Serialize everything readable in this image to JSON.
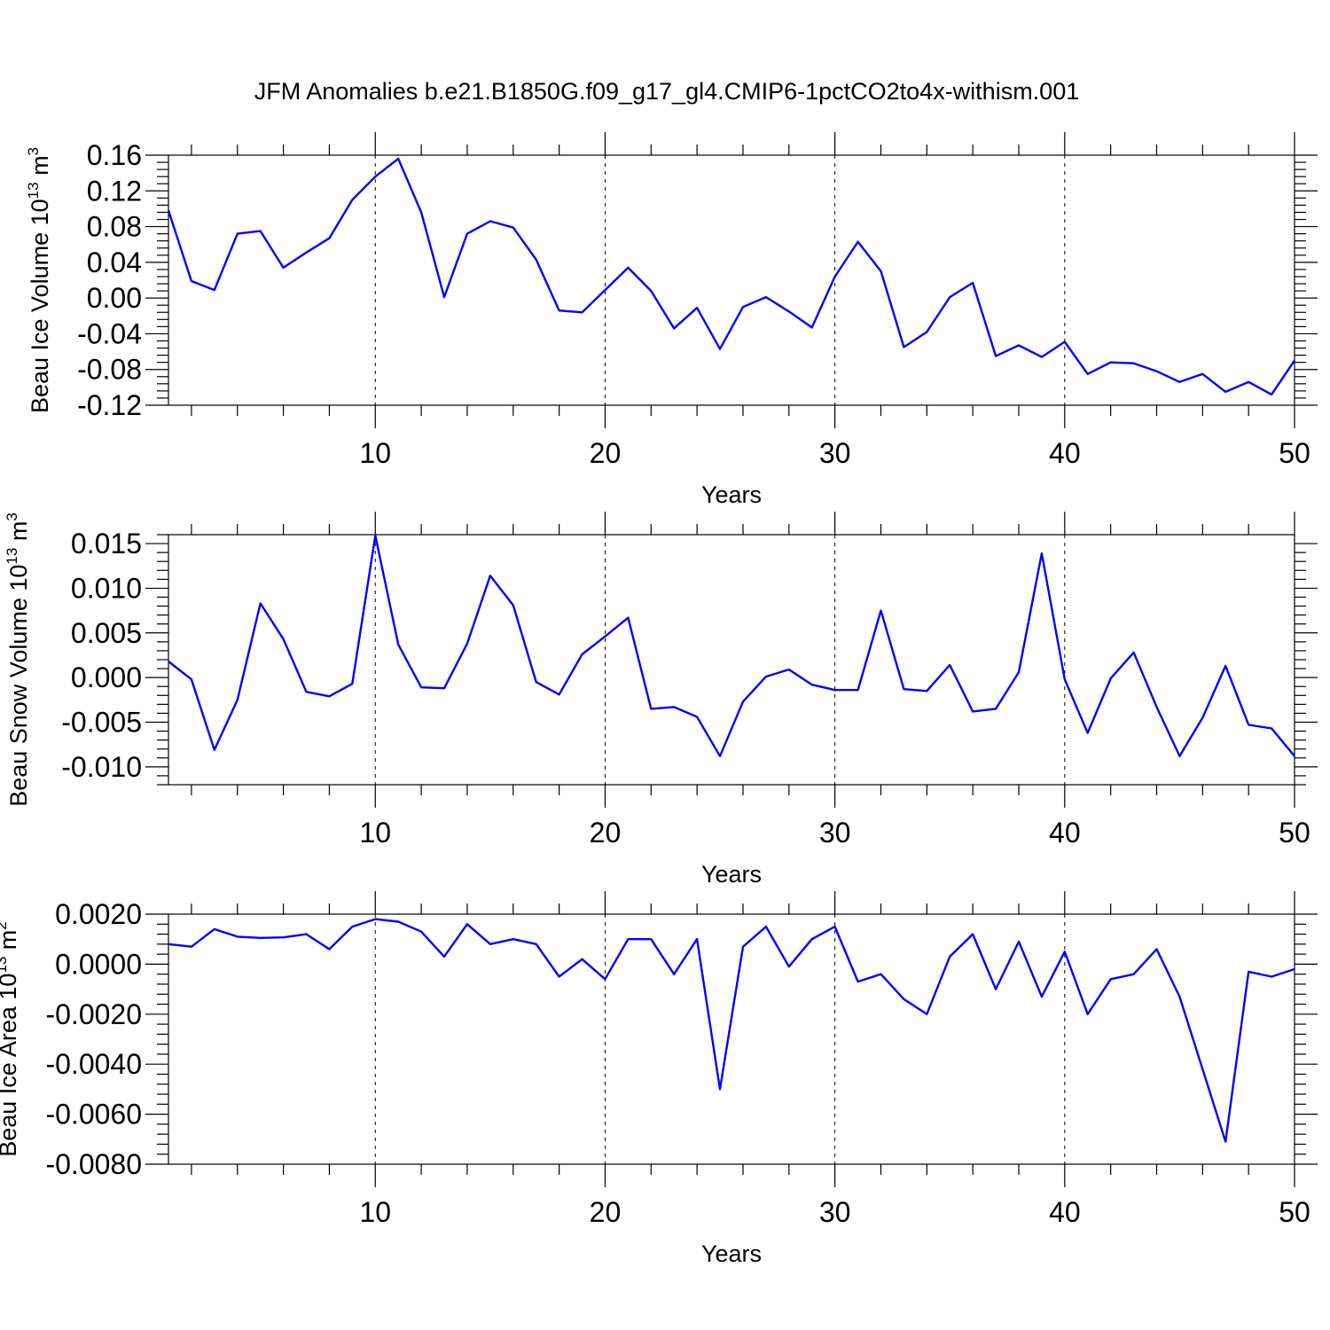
{
  "title": "JFM Anomalies b.e21.B1850G.f09_g17_gl4.CMIP6-1pctCO2to4x-withism.001",
  "colors": {
    "line": "#0000ff",
    "axis": "#000000"
  },
  "chart_data": [
    {
      "type": "line",
      "xlabel": "Years",
      "ylabel": "Beau Ice Volume 10",
      "ylabel_exp": "13",
      "ylabel_unit": " m",
      "ylabel_unit_exp": "3",
      "xlim": [
        1,
        50
      ],
      "ylim": [
        -0.12,
        0.16
      ],
      "xticks": [
        10,
        20,
        30,
        40,
        50
      ],
      "xtick_labels": [
        "10",
        "20",
        "30",
        "40",
        "50"
      ],
      "yticks": [
        -0.12,
        -0.08,
        -0.04,
        0.0,
        0.04,
        0.08,
        0.12,
        0.16
      ],
      "ytick_labels": [
        "-0.12",
        "-0.08",
        "-0.04",
        "0.00",
        "0.04",
        "0.08",
        "0.12",
        "0.16"
      ],
      "grid": "vertical dashed at major x ticks",
      "series": [
        {
          "name": "Beau Ice Volume",
          "x": [
            1,
            2,
            3,
            4,
            5,
            6,
            7,
            8,
            9,
            10,
            11,
            12,
            13,
            14,
            15,
            16,
            17,
            18,
            19,
            20,
            21,
            22,
            23,
            24,
            25,
            26,
            27,
            28,
            29,
            30,
            31,
            32,
            33,
            34,
            35,
            36,
            37,
            38,
            39,
            40,
            41,
            42,
            43,
            44,
            45,
            46,
            47,
            48,
            49,
            50
          ],
          "values": [
            0.098,
            0.019,
            0.009,
            0.072,
            0.075,
            0.034,
            0.051,
            0.067,
            0.11,
            0.136,
            0.156,
            0.096,
            0.001,
            0.072,
            0.086,
            0.079,
            0.043,
            -0.014,
            -0.016,
            0.009,
            0.034,
            0.008,
            -0.034,
            -0.011,
            -0.057,
            -0.01,
            0.001,
            -0.015,
            -0.033,
            0.024,
            0.063,
            0.03,
            -0.055,
            -0.038,
            0.001,
            0.017,
            -0.065,
            -0.053,
            -0.066,
            -0.049,
            -0.085,
            -0.072,
            -0.073,
            -0.082,
            -0.094,
            -0.085,
            -0.105,
            -0.094,
            -0.108,
            -0.07
          ]
        }
      ]
    },
    {
      "type": "line",
      "xlabel": "Years",
      "ylabel": "Beau Snow Volume 10",
      "ylabel_exp": "13",
      "ylabel_unit": " m",
      "ylabel_unit_exp": "3",
      "xlim": [
        1,
        50
      ],
      "ylim": [
        -0.012,
        0.016
      ],
      "xticks": [
        10,
        20,
        30,
        40,
        50
      ],
      "xtick_labels": [
        "10",
        "20",
        "30",
        "40",
        "50"
      ],
      "yticks": [
        -0.01,
        -0.005,
        0.0,
        0.005,
        0.01,
        0.015
      ],
      "ytick_labels": [
        "-0.010",
        "-0.005",
        "0.000",
        "0.005",
        "0.010",
        "0.015"
      ],
      "grid": "vertical dashed at major x ticks",
      "series": [
        {
          "name": "Beau Snow Volume",
          "x": [
            1,
            2,
            3,
            4,
            5,
            6,
            7,
            8,
            9,
            10,
            11,
            12,
            13,
            14,
            15,
            16,
            17,
            18,
            19,
            20,
            21,
            22,
            23,
            24,
            25,
            26,
            27,
            28,
            29,
            30,
            31,
            32,
            33,
            34,
            35,
            36,
            37,
            38,
            39,
            40,
            41,
            42,
            43,
            44,
            45,
            46,
            47,
            48,
            49,
            50
          ],
          "values": [
            0.0018,
            -0.0002,
            -0.0081,
            -0.0025,
            0.0083,
            0.0043,
            -0.0016,
            -0.0021,
            -0.0007,
            0.0159,
            0.0037,
            -0.0011,
            -0.0012,
            0.0038,
            0.0114,
            0.0081,
            -0.0005,
            -0.0019,
            0.0026,
            0.0046,
            0.0067,
            -0.0035,
            -0.0033,
            -0.0044,
            -0.0088,
            -0.0027,
            0.0001,
            0.0009,
            -0.0008,
            -0.0014,
            -0.0014,
            0.0075,
            -0.0013,
            -0.0015,
            0.0014,
            -0.0038,
            -0.0035,
            0.0006,
            0.0139,
            -0.0002,
            -0.0062,
            -0.0001,
            0.0028,
            -0.0033,
            -0.0088,
            -0.0045,
            0.0013,
            -0.0053,
            -0.0057,
            -0.0088
          ]
        }
      ]
    },
    {
      "type": "line",
      "xlabel": "Years",
      "ylabel": "Beau Ice Area 10",
      "ylabel_exp": "13",
      "ylabel_unit": " m",
      "ylabel_unit_exp": "2",
      "xlim": [
        1,
        50
      ],
      "ylim": [
        -0.008,
        0.002
      ],
      "xticks": [
        10,
        20,
        30,
        40,
        50
      ],
      "xtick_labels": [
        "10",
        "20",
        "30",
        "40",
        "50"
      ],
      "yticks": [
        -0.008,
        -0.006,
        -0.004,
        -0.002,
        0.0,
        0.002
      ],
      "ytick_labels": [
        "-0.0080",
        "-0.0060",
        "-0.0040",
        "-0.0020",
        "0.0000",
        "0.0020"
      ],
      "grid": "vertical dashed at major x ticks",
      "series": [
        {
          "name": "Beau Ice Area",
          "x": [
            1,
            2,
            3,
            4,
            5,
            6,
            7,
            8,
            9,
            10,
            11,
            12,
            13,
            14,
            15,
            16,
            17,
            18,
            19,
            20,
            21,
            22,
            23,
            24,
            25,
            26,
            27,
            28,
            29,
            30,
            31,
            32,
            33,
            34,
            35,
            36,
            37,
            38,
            39,
            40,
            41,
            42,
            43,
            44,
            45,
            46,
            47,
            48,
            49,
            50
          ],
          "values": [
            0.0008,
            0.0007,
            0.0014,
            0.0011,
            0.00105,
            0.00107,
            0.0012,
            0.0006,
            0.0015,
            0.0018,
            0.0017,
            0.0013,
            0.0003,
            0.0016,
            0.0008,
            0.001,
            0.0008,
            -0.0005,
            0.0002,
            -0.0006,
            0.001,
            0.001,
            -0.0004,
            0.001,
            -0.005,
            0.0007,
            0.0015,
            -0.0001,
            0.001,
            0.0015,
            -0.0007,
            -0.0004,
            -0.0014,
            -0.002,
            0.0003,
            0.0012,
            -0.001,
            0.0009,
            -0.0013,
            0.0005,
            -0.002,
            -0.0006,
            -0.0004,
            0.0006,
            -0.0013,
            -0.0042,
            -0.0071,
            -0.0003,
            -0.0005,
            -0.0002
          ]
        }
      ]
    }
  ]
}
